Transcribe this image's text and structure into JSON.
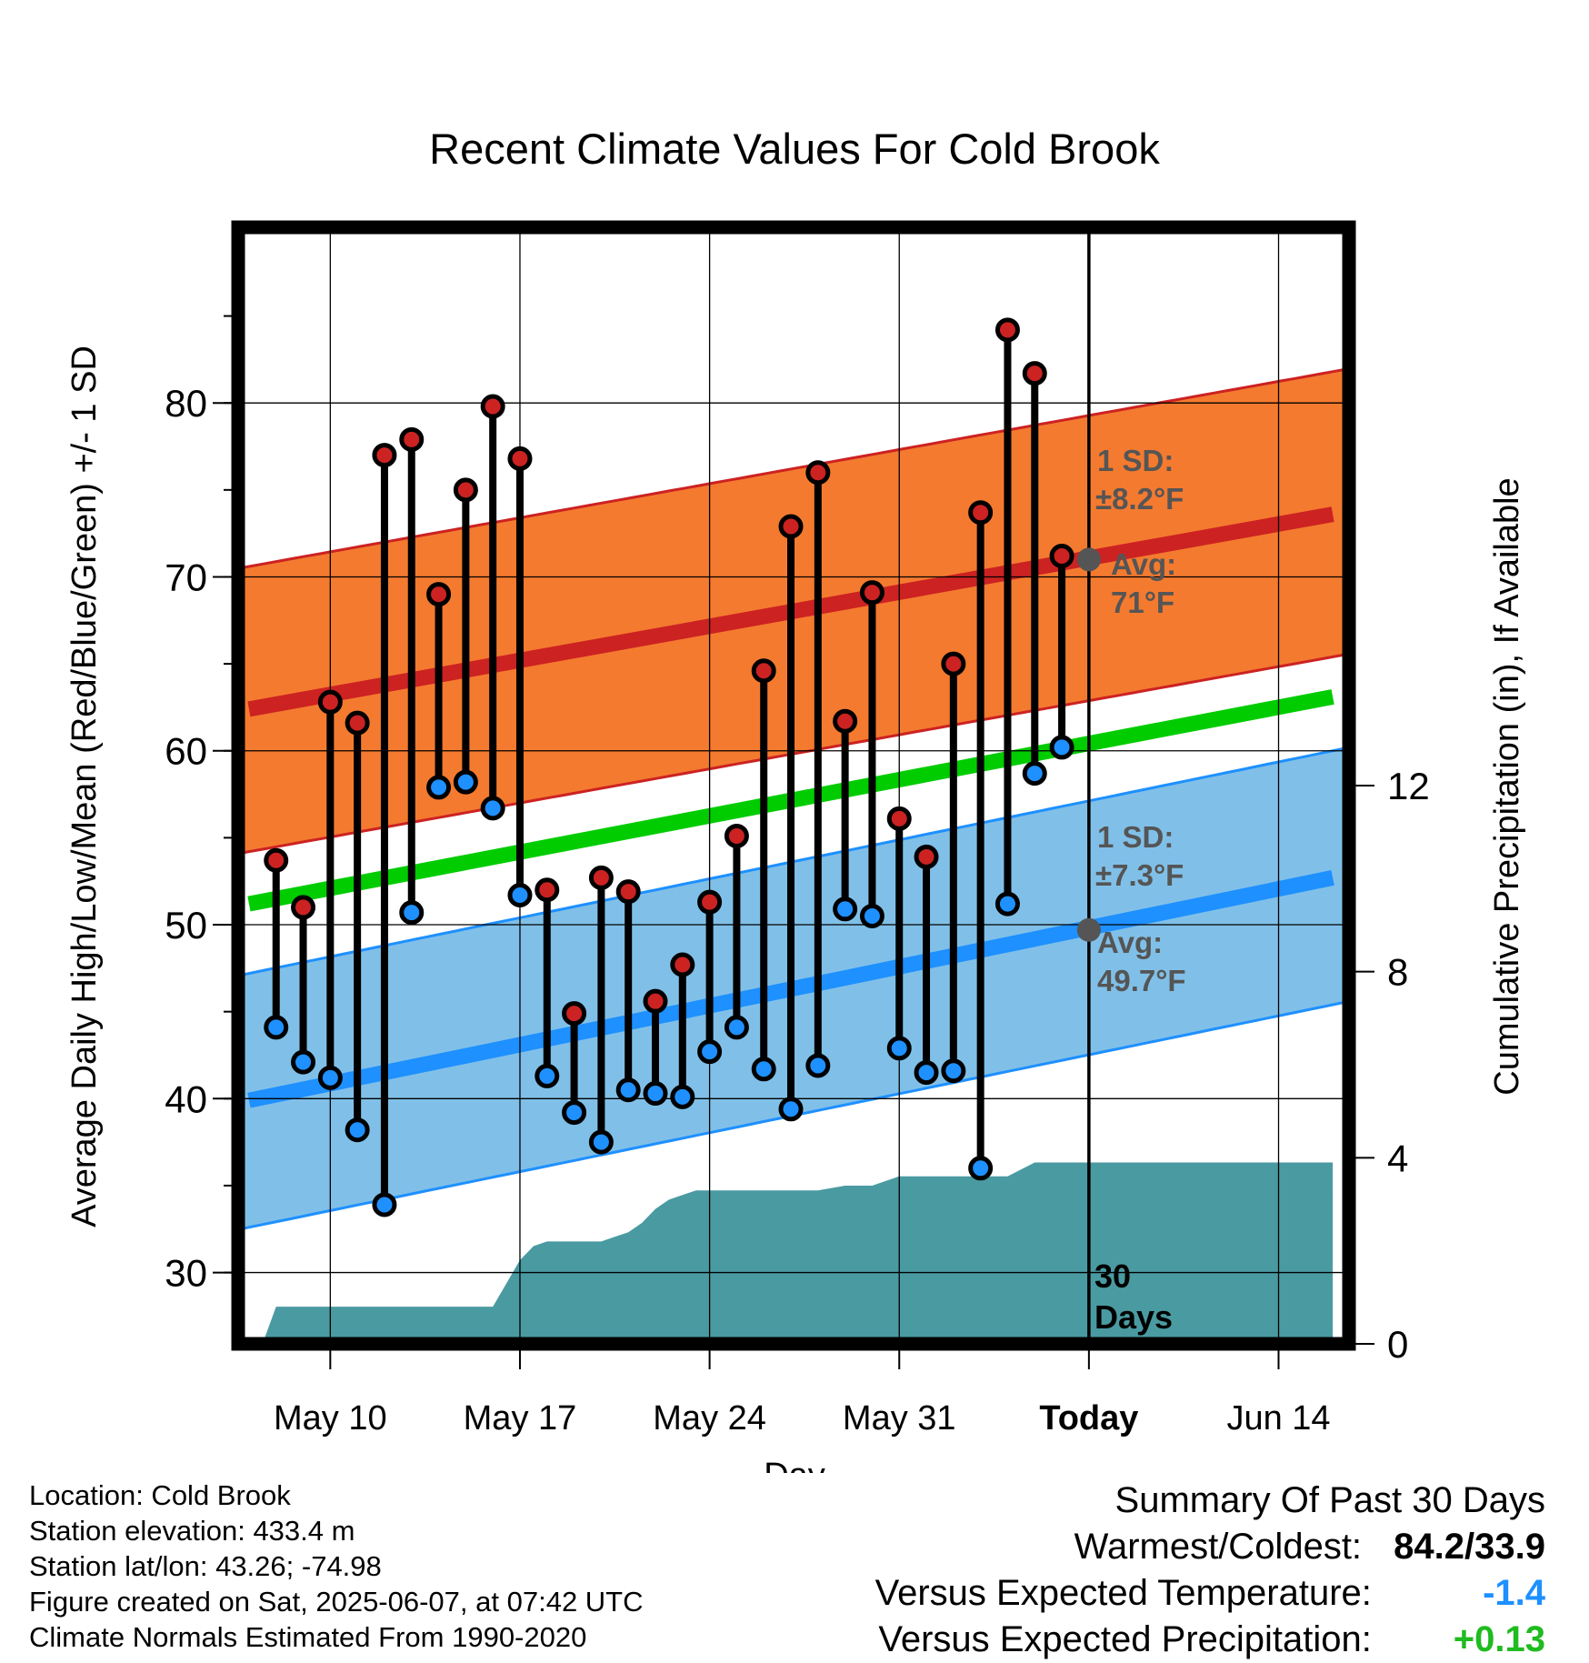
{
  "chart_data": {
    "type": "line",
    "title": "Recent Climate Values For Cold Brook",
    "xlabel": "Day",
    "ylabel": "Average Daily High/Low/Mean (Red/Blue/Green) +/- 1 SD",
    "ylabel_right": "Cumulative Precipitation (in), If Available",
    "x_ticks": [
      "May 10",
      "May 17",
      "May 24",
      "May 31",
      "Today",
      "Jun 14"
    ],
    "y_ticks": [
      "30",
      "40",
      "50",
      "60",
      "70",
      "80"
    ],
    "y_right_ticks": [
      "0",
      "4",
      "8",
      "12"
    ],
    "ylim": [
      25.9,
      90.1
    ],
    "ylim_right": [
      0,
      24
    ],
    "x_range_days_from_today": [
      -31.4,
      9.6
    ],
    "grid": true,
    "series": [
      {
        "name": "High",
        "days": [
          -30,
          -29,
          -28,
          -27,
          -26,
          -25,
          -24,
          -23,
          -22,
          -21,
          -20,
          -19,
          -18,
          -17,
          -16,
          -15,
          -14,
          -13,
          -12,
          -11,
          -10,
          -9,
          -8,
          -7,
          -6,
          -5,
          -4,
          -3,
          -2,
          -1
        ],
        "values": [
          53.7,
          51.0,
          62.8,
          61.6,
          77.0,
          77.9,
          69.0,
          75.0,
          79.8,
          76.8,
          52.0,
          44.9,
          52.7,
          51.9,
          45.6,
          47.7,
          51.3,
          55.1,
          64.6,
          72.9,
          76.0,
          61.7,
          69.1,
          56.1,
          53.9,
          65.0,
          73.7,
          84.2,
          81.7,
          71.2
        ]
      },
      {
        "name": "Low",
        "days": [
          -30,
          -29,
          -28,
          -27,
          -26,
          -25,
          -24,
          -23,
          -22,
          -21,
          -20,
          -19,
          -18,
          -17,
          -16,
          -15,
          -14,
          -13,
          -12,
          -11,
          -10,
          -9,
          -8,
          -7,
          -6,
          -5,
          -4,
          -3,
          -2,
          -1
        ],
        "values": [
          44.1,
          42.1,
          41.2,
          38.2,
          33.9,
          50.7,
          57.9,
          58.2,
          56.7,
          51.7,
          41.3,
          39.2,
          37.5,
          40.5,
          40.3,
          40.1,
          42.7,
          44.1,
          41.7,
          39.4,
          41.9,
          50.9,
          50.5,
          42.9,
          41.5,
          41.6,
          36.0,
          51.2,
          58.7,
          60.2
        ]
      },
      {
        "name": "Normal High",
        "x": [
          -31,
          9
        ],
        "values": [
          62.4,
          73.6
        ]
      },
      {
        "name": "Normal Low",
        "x": [
          -31,
          9
        ],
        "values": [
          39.9,
          52.7
        ]
      },
      {
        "name": "Normal Mean",
        "x": [
          -31,
          9
        ],
        "values": [
          51.2,
          63.1
        ]
      },
      {
        "name": "Cumulative Precipitation",
        "x": [
          -30.5,
          -30,
          -25,
          -23,
          -22,
          -21.5,
          -21,
          -20.5,
          -20,
          -19,
          -18,
          -17.5,
          -17,
          -16.5,
          -16,
          -15.5,
          -15,
          -14.5,
          -14,
          -13,
          -10,
          -9,
          -8,
          -7,
          -6.5,
          -3.5,
          -3,
          -2,
          -1,
          0,
          9
        ],
        "values": [
          0,
          0.8,
          0.8,
          0.8,
          0.8,
          1.3,
          1.8,
          2.1,
          2.2,
          2.2,
          2.2,
          2.3,
          2.4,
          2.6,
          2.9,
          3.1,
          3.2,
          3.3,
          3.3,
          3.3,
          3.3,
          3.4,
          3.4,
          3.6,
          3.6,
          3.6,
          3.6,
          3.9,
          3.9,
          3.9,
          3.9
        ]
      }
    ],
    "sd_bands": {
      "high": {
        "sd": "8.2",
        "lower": [
          54.2,
          65.4
        ],
        "upper": [
          70.6,
          81.8
        ]
      },
      "low": {
        "sd": "7.3",
        "lower": [
          32.6,
          45.4
        ],
        "upper": [
          47.2,
          60.0
        ]
      }
    },
    "today_markers": {
      "high_avg": 71.0,
      "low_avg": 49.7
    },
    "annotations": {
      "high_sd_label": "1 SD:",
      "high_sd_value": "±8.2°F",
      "high_avg_label": "Avg:",
      "high_avg_value": "71°F",
      "low_sd_label": "1 SD:",
      "low_sd_value": "±7.3°F",
      "low_avg_label": "Avg:",
      "low_avg_value": "49.7°F",
      "days_number": "30",
      "days_word": "Days"
    }
  },
  "colors": {
    "high": "#cc2222",
    "low": "#1e90ff",
    "mean": "#00cc00",
    "high_band": "#f47a2f",
    "low_band": "#80c0e8",
    "precip": "#4a9aa2",
    "annotation": "#555555",
    "negative": "#1e90ff",
    "positive": "#1fbb1f"
  },
  "footer": {
    "location": "Location: Cold Brook",
    "elevation": "Station elevation: 433.4 m",
    "latlon": "Station lat/lon: 43.26; -74.98",
    "created": "Figure created on Sat, 2025-06-07, at 07:42 UTC",
    "normals": "Climate Normals Estimated From 1990-2020"
  },
  "summary": {
    "title": "Summary Of Past 30 Days",
    "warm_cold_label": "Warmest/Coldest:",
    "warm_cold_value": "84.2/33.9",
    "temp_label": "Versus Expected Temperature:",
    "temp_value": "-1.4",
    "precip_label": "Versus Expected Precipitation:",
    "precip_value": "+0.13"
  }
}
